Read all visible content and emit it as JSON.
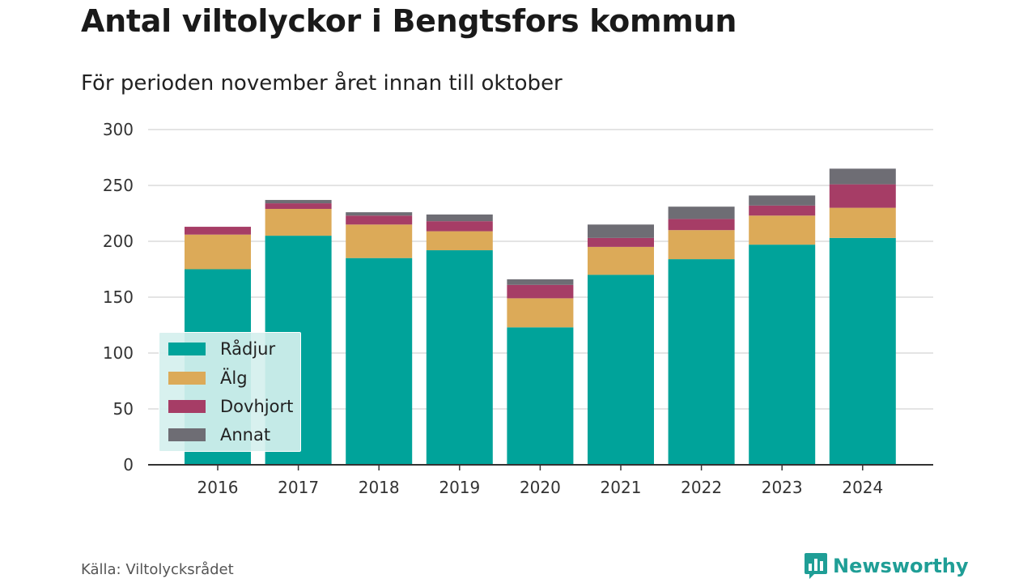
{
  "header": {
    "title": "Antal viltolyckor i Bengtsfors kommun",
    "subtitle": "För perioden november året innan till oktober"
  },
  "footer": {
    "source": "Källa: Viltolycksrådet",
    "brand": "Newsworthy",
    "brand_icon": "bar-chart-speech-bubble-icon",
    "brand_color": "#1f9e96"
  },
  "chart_data": {
    "type": "bar",
    "stacked": true,
    "categories": [
      "2016",
      "2017",
      "2018",
      "2019",
      "2020",
      "2021",
      "2022",
      "2023",
      "2024"
    ],
    "series": [
      {
        "name": "Rådjur",
        "color": "#00a39a",
        "values": [
          175,
          205,
          185,
          192,
          123,
          170,
          184,
          197,
          203
        ]
      },
      {
        "name": "Älg",
        "color": "#dcaa58",
        "values": [
          31,
          24,
          30,
          17,
          26,
          25,
          26,
          26,
          27
        ]
      },
      {
        "name": "Dovhjort",
        "color": "#a63d66",
        "values": [
          7,
          5,
          8,
          9,
          12,
          8,
          10,
          9,
          21
        ]
      },
      {
        "name": "Annat",
        "color": "#6e6d74",
        "values": [
          0,
          3,
          3,
          6,
          5,
          12,
          11,
          9,
          14
        ]
      }
    ],
    "ylim": [
      0,
      300
    ],
    "yticks": [
      0,
      50,
      100,
      150,
      200,
      250,
      300
    ],
    "grid": true,
    "legend_position": "bottom-left",
    "xlabel": "",
    "ylabel": ""
  }
}
